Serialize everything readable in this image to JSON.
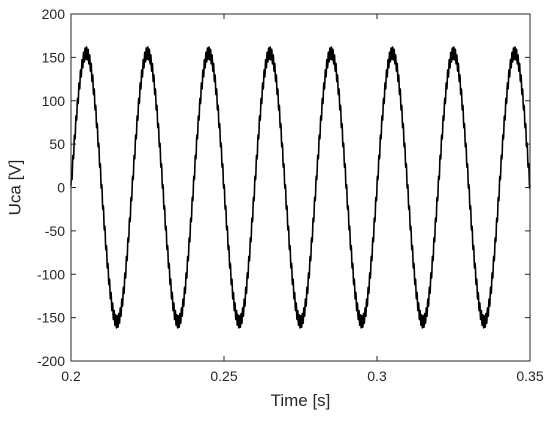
{
  "chart_data": {
    "type": "line",
    "title": "",
    "xlabel": "Time [s]",
    "ylabel": "Uca [V]",
    "xlim": [
      0.2,
      0.35
    ],
    "ylim": [
      -200,
      200
    ],
    "xticks": [
      0.2,
      0.25,
      0.3,
      0.35
    ],
    "xtick_labels": [
      "0.2",
      "0.25",
      "0.3",
      "0.35"
    ],
    "yticks": [
      200,
      150,
      100,
      50,
      0,
      -50,
      -100,
      -150,
      -200
    ],
    "ytick_labels": [
      "200",
      "150",
      "100",
      "50",
      "0",
      "-50",
      "-100",
      "-150",
      "-200"
    ],
    "grid": false,
    "legend": "none",
    "series": [
      {
        "color": "#000000",
        "waveform": "sinusoid",
        "frequency_hz": 50,
        "amplitude_v": 155,
        "ripple_v": 7,
        "x_start": 0.2,
        "x_end": 0.35,
        "peaks": [
          {
            "x": 0.205,
            "y": 162
          },
          {
            "x": 0.215,
            "y": -162
          },
          {
            "x": 0.225,
            "y": 162
          },
          {
            "x": 0.235,
            "y": -162
          },
          {
            "x": 0.245,
            "y": 162
          },
          {
            "x": 0.255,
            "y": -162
          },
          {
            "x": 0.265,
            "y": 162
          },
          {
            "x": 0.275,
            "y": -162
          },
          {
            "x": 0.285,
            "y": 162
          },
          {
            "x": 0.295,
            "y": -162
          },
          {
            "x": 0.305,
            "y": 162
          },
          {
            "x": 0.315,
            "y": -162
          },
          {
            "x": 0.325,
            "y": 162
          },
          {
            "x": 0.335,
            "y": -162
          },
          {
            "x": 0.345,
            "y": 162
          }
        ]
      }
    ]
  }
}
